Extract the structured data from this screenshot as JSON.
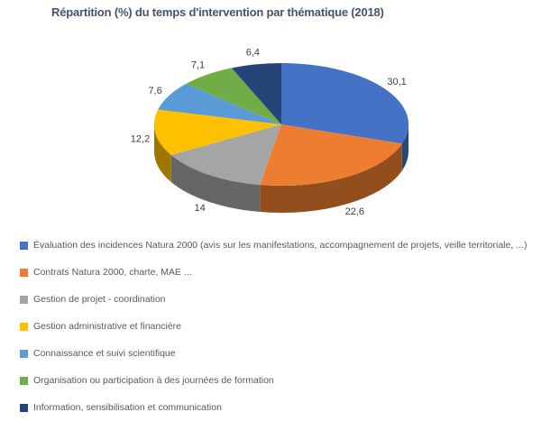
{
  "colors": {
    "background": "#FFFFFF",
    "title_text": "#44546A",
    "data_label_text": "#404040",
    "legend_text": "#595959"
  },
  "chart_data": {
    "type": "pie",
    "style": "3d",
    "title": "Répartition (%) du temps d'intervention par thématique (2018)",
    "unit": "%",
    "start_angle_deg": 0,
    "direction": "clockwise",
    "labels_position": "outside",
    "legend_position": "bottom-left",
    "slices": [
      {
        "label": "Évaluation des incidences Natura 2000 (avis sur les manifestations, accompagnement de projets, veille territoriale, ...)",
        "value": 30.1,
        "display": "30,1",
        "color": "#4472C4"
      },
      {
        "label": "Contrats Natura 2000, charte, MAE ...",
        "value": 22.6,
        "display": "22,6",
        "color": "#ED7D31"
      },
      {
        "label": "Gestion de projet - coordination",
        "value": 14,
        "display": "14",
        "color": "#A5A5A5"
      },
      {
        "label": "Gestion administrative et financière",
        "value": 12.2,
        "display": "12,2",
        "color": "#FFC000"
      },
      {
        "label": "Connaissance et suivi scientifique",
        "value": 7.6,
        "display": "7,6",
        "color": "#5B9BD5"
      },
      {
        "label": "Organisation ou participation à des journées de formation",
        "value": 7.1,
        "display": "7,1",
        "color": "#70AD47"
      },
      {
        "label": "Information, sensibilisation et communication",
        "value": 6.4,
        "display": "6,4",
        "color": "#264478"
      }
    ]
  }
}
